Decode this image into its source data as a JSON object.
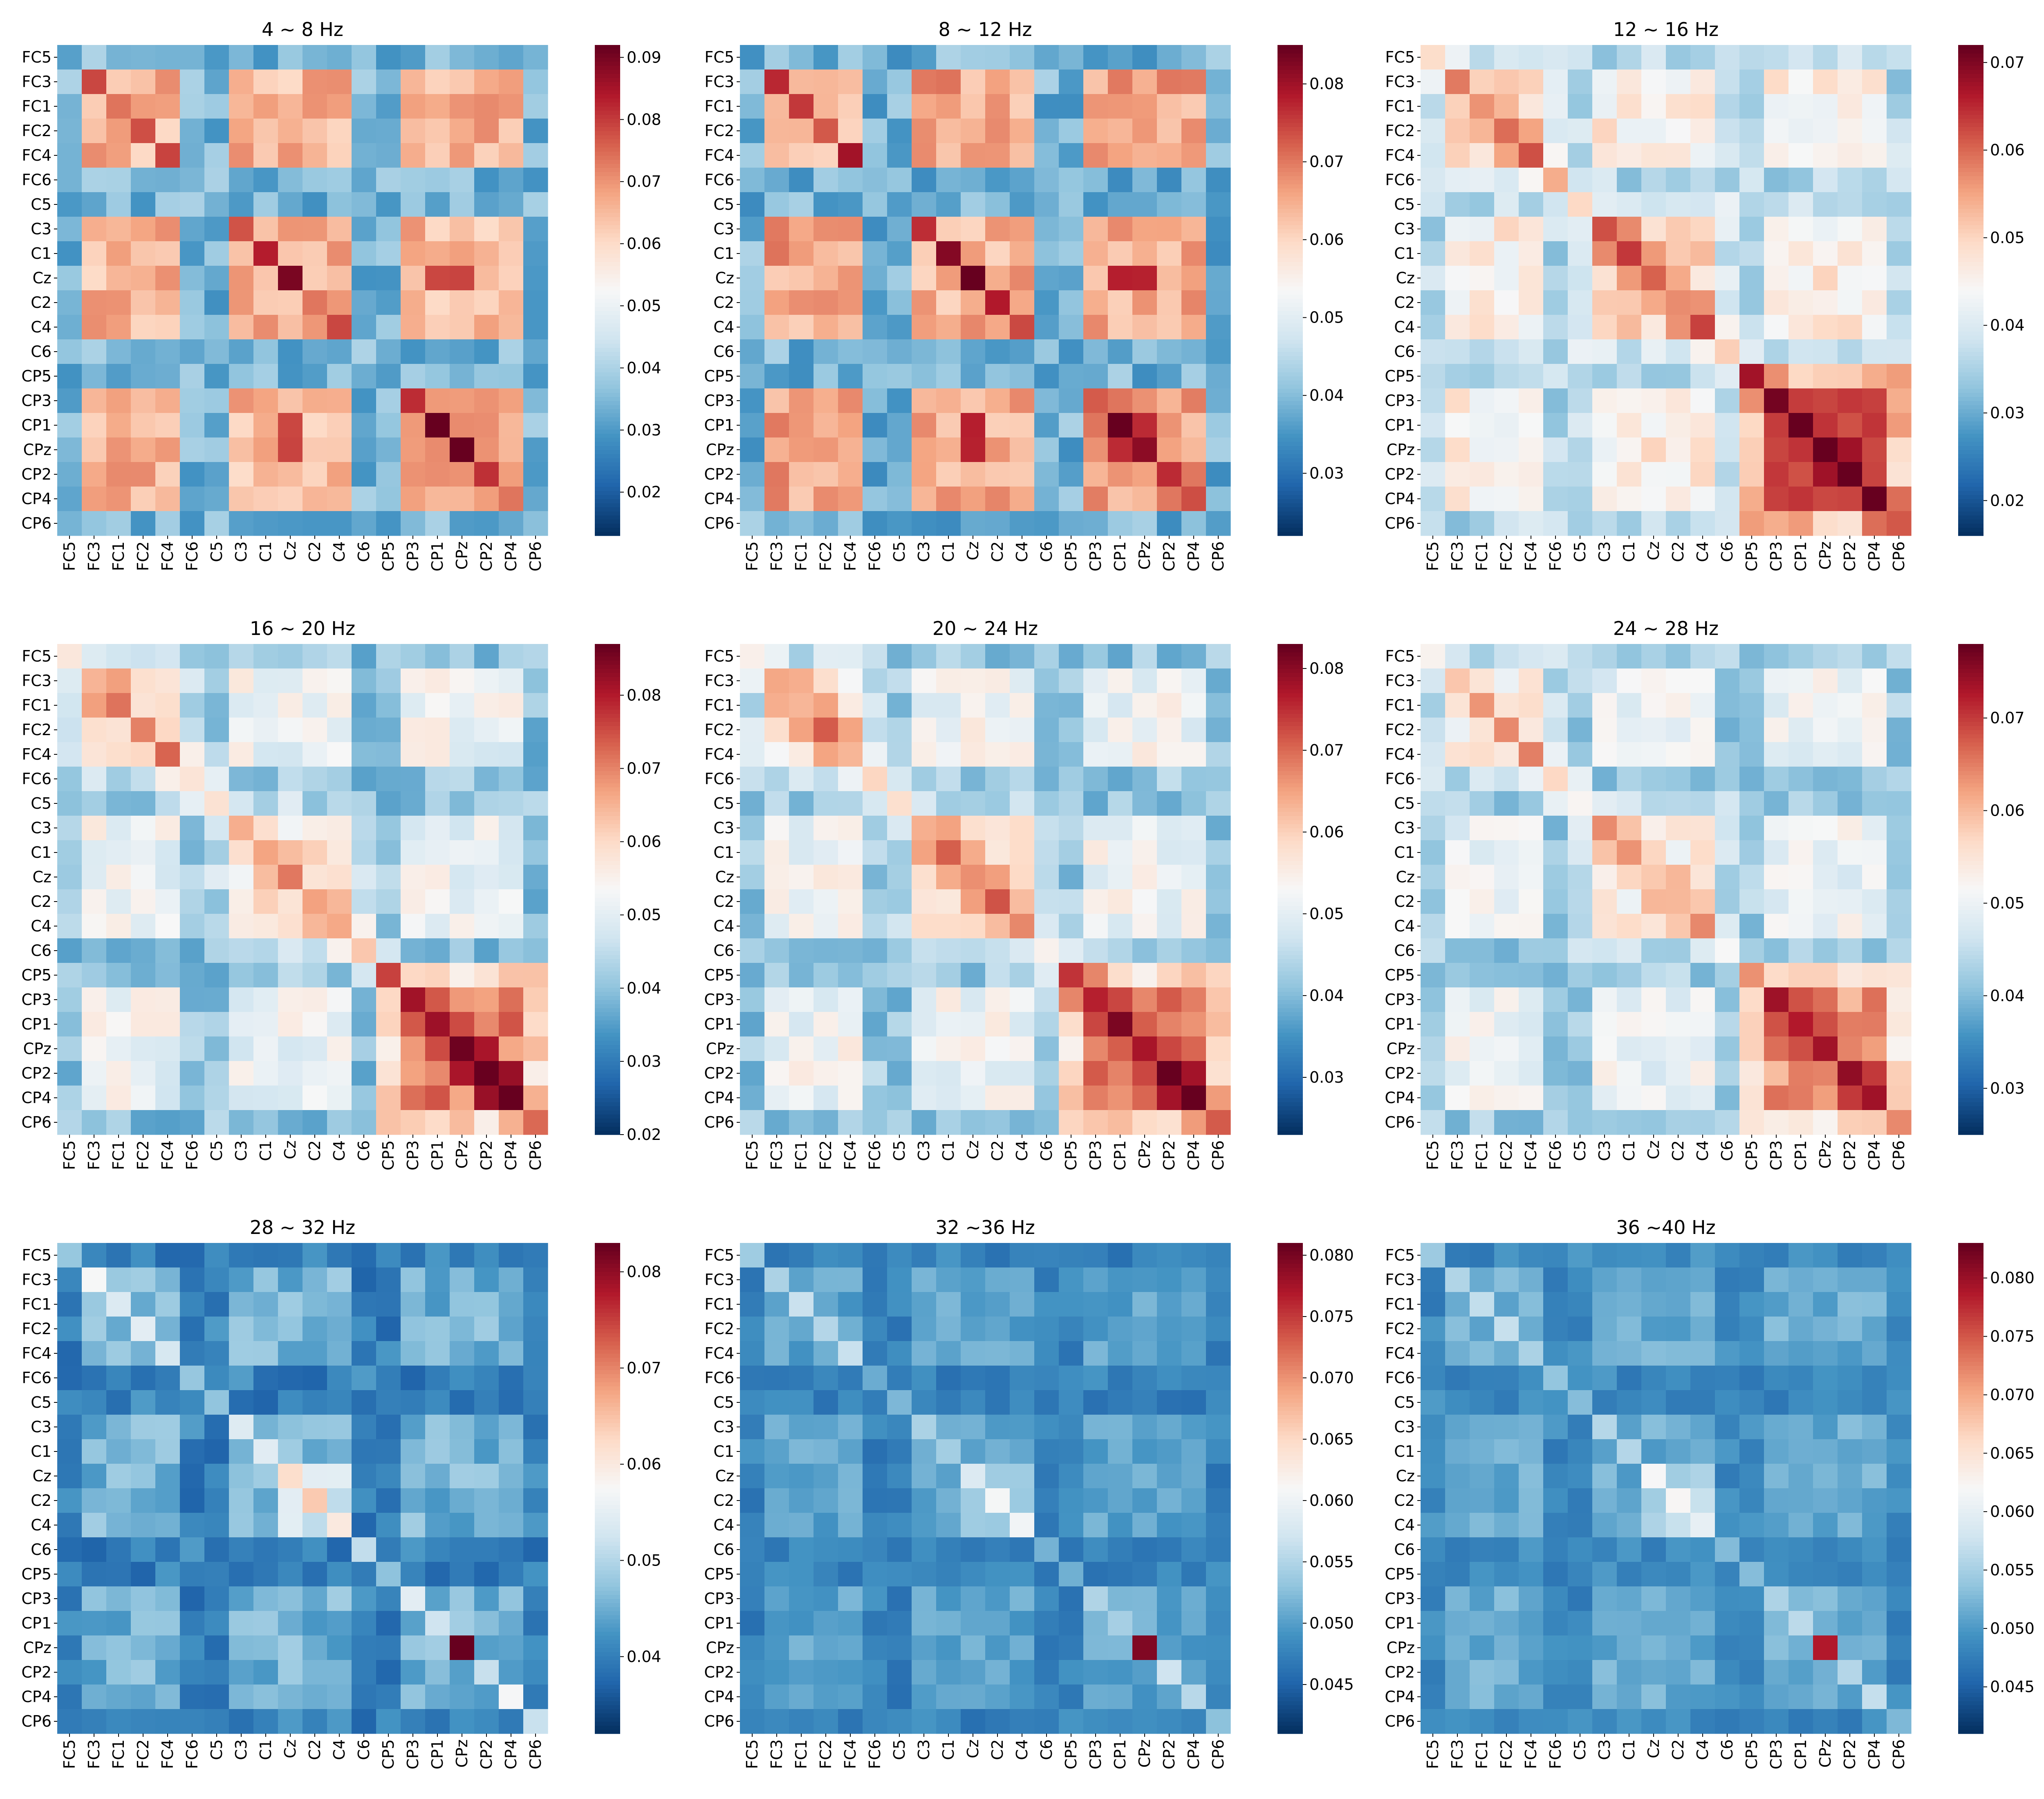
{
  "labels": [
    "FC5",
    "FC3",
    "FC1",
    "FC2",
    "FC4",
    "FC6",
    "C5",
    "C3",
    "C1",
    "Cz",
    "C2",
    "C4",
    "C6",
    "CP5",
    "CP3",
    "CP1",
    "CPz",
    "CP2",
    "CP4",
    "CP6"
  ],
  "colormap": {
    "low": "#053061",
    "mid": "#f7f7f7",
    "high": "#67001f",
    "stops": [
      "#053061",
      "#2166ac",
      "#4393c3",
      "#92c5de",
      "#d1e5f0",
      "#f7f7f7",
      "#fddbc7",
      "#f4a582",
      "#d6604d",
      "#b2182b",
      "#67001f"
    ]
  },
  "chart_data": [
    {
      "type": "heatmap",
      "title": "4 ~ 8 Hz",
      "vmin": 0.013,
      "vmax": 0.092,
      "colorbar_ticks": [
        "0.02",
        "0.03",
        "0.04",
        "0.05",
        "0.06",
        "0.07",
        "0.08",
        "0.09"
      ],
      "pattern": "theta",
      "base": 0.05,
      "amp": 0.035
    },
    {
      "type": "heatmap",
      "title": "8 ~ 12 Hz",
      "vmin": 0.022,
      "vmax": 0.085,
      "colorbar_ticks": [
        "0.03",
        "0.04",
        "0.05",
        "0.06",
        "0.07",
        "0.08"
      ],
      "pattern": "alpha",
      "base": 0.052,
      "amp": 0.03
    },
    {
      "type": "heatmap",
      "title": "12 ~ 16 Hz",
      "vmin": 0.016,
      "vmax": 0.072,
      "colorbar_ticks": [
        "0.02",
        "0.03",
        "0.04",
        "0.05",
        "0.06",
        "0.07"
      ],
      "pattern": "beta1",
      "base": 0.046,
      "amp": 0.025
    },
    {
      "type": "heatmap",
      "title": "16 ~ 20 Hz",
      "vmin": 0.02,
      "vmax": 0.087,
      "colorbar_ticks": [
        "0.02",
        "0.03",
        "0.04",
        "0.05",
        "0.06",
        "0.07",
        "0.08"
      ],
      "pattern": "beta2",
      "base": 0.052,
      "amp": 0.03
    },
    {
      "type": "heatmap",
      "title": "20 ~ 24 Hz",
      "vmin": 0.023,
      "vmax": 0.083,
      "colorbar_ticks": [
        "0.03",
        "0.04",
        "0.05",
        "0.06",
        "0.07",
        "0.08"
      ],
      "pattern": "beta3",
      "base": 0.052,
      "amp": 0.026
    },
    {
      "type": "heatmap",
      "title": "24 ~ 28 Hz",
      "vmin": 0.025,
      "vmax": 0.078,
      "colorbar_ticks": [
        "0.03",
        "0.04",
        "0.05",
        "0.06",
        "0.07"
      ],
      "pattern": "beta4",
      "base": 0.05,
      "amp": 0.02
    },
    {
      "type": "heatmap",
      "title": "28 ~ 32 Hz",
      "vmin": 0.032,
      "vmax": 0.083,
      "colorbar_ticks": [
        "0.04",
        "0.05",
        "0.06",
        "0.07",
        "0.08"
      ],
      "pattern": "gamma1",
      "base": 0.05,
      "amp": 0.018
    },
    {
      "type": "heatmap",
      "title": "32 ~36 Hz",
      "vmin": 0.041,
      "vmax": 0.081,
      "colorbar_ticks": [
        "0.045",
        "0.050",
        "0.055",
        "0.060",
        "0.065",
        "0.070",
        "0.075",
        "0.080"
      ],
      "pattern": "gamma2",
      "base": 0.053,
      "amp": 0.01
    },
    {
      "type": "heatmap",
      "title": "36 ~40 Hz",
      "vmin": 0.041,
      "vmax": 0.083,
      "colorbar_ticks": [
        "0.045",
        "0.050",
        "0.055",
        "0.060",
        "0.065",
        "0.070",
        "0.075",
        "0.080"
      ],
      "pattern": "gamma3",
      "base": 0.054,
      "amp": 0.01
    }
  ]
}
